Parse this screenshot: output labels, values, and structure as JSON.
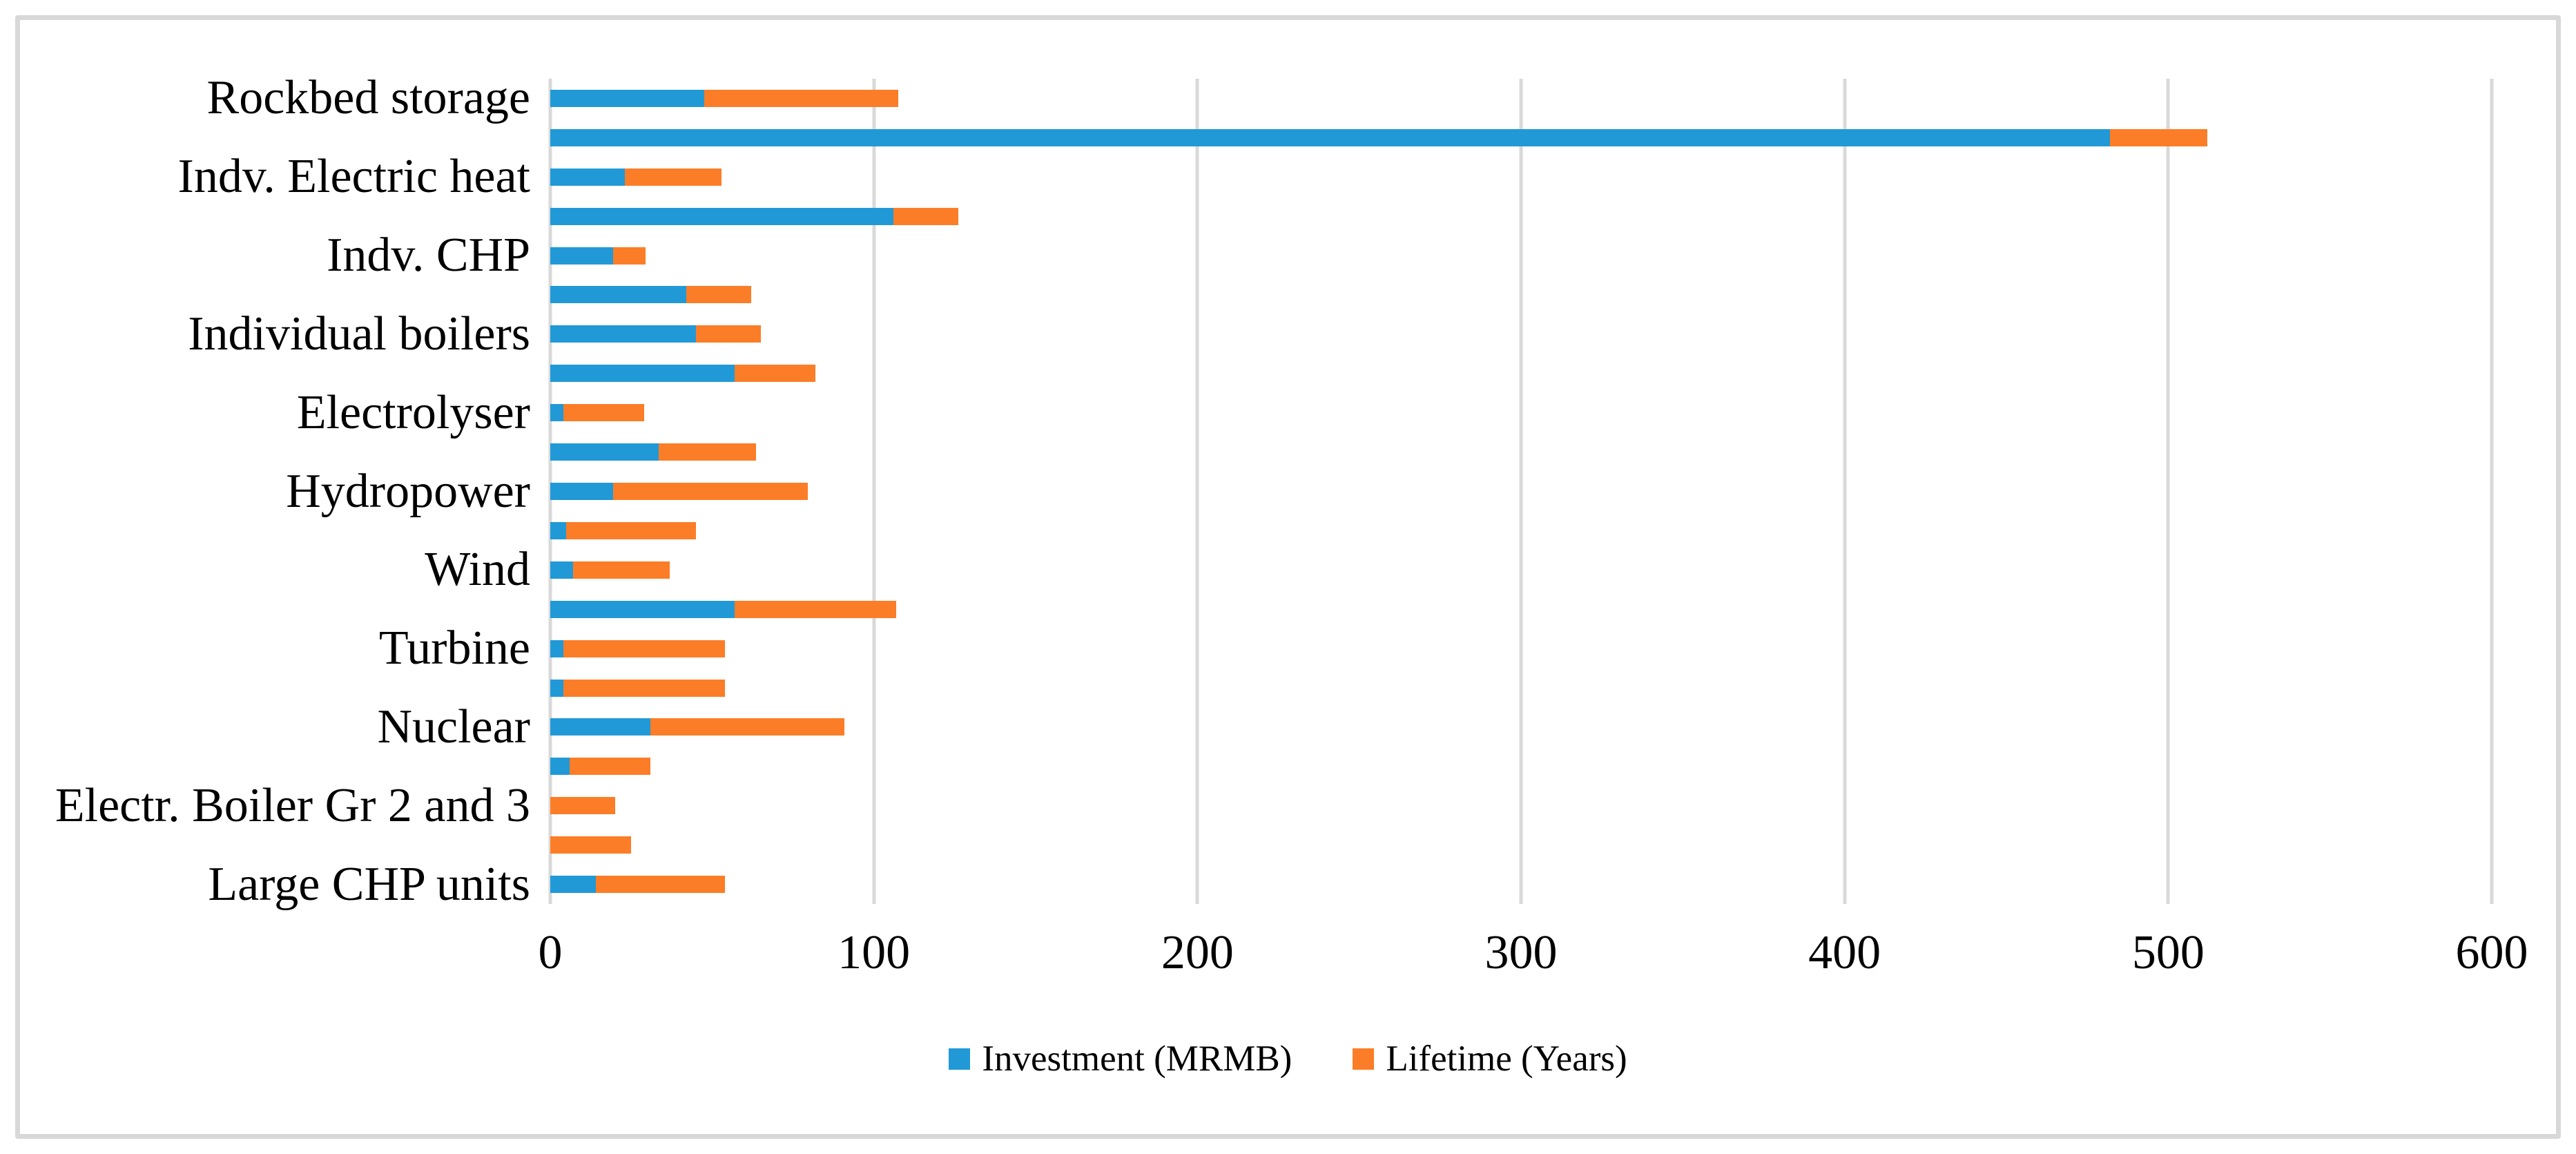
{
  "figure": {
    "background": "#FFFFFF",
    "border_color": "#D8D8D8"
  },
  "chart_data": {
    "type": "bar",
    "orientation": "horizontal",
    "stacked": true,
    "title": "",
    "xlabel": "",
    "ylabel": "",
    "xlim": [
      0,
      600
    ],
    "x_ticks": [
      "0",
      "100",
      "200",
      "300",
      "400",
      "500",
      "600"
    ],
    "gridlines": true,
    "gridline_color": "#D9D9D9",
    "legend_position": "bottom",
    "axis_label_interval": 2,
    "categories": [
      "Rockbed storage",
      "",
      "Indv. Electric heat",
      "",
      "Indv. CHP",
      "",
      "Individual boilers",
      "",
      "Electrolyser",
      "",
      "Hydropower",
      "",
      "Wind",
      "",
      "Turbine",
      "",
      "Nuclear",
      "",
      "Electr. Boiler Gr 2 and 3",
      "",
      "Large CHP units"
    ],
    "series": [
      {
        "name": "Investment (MRMB)",
        "color": "#2199D6",
        "values": [
          47.5,
          482,
          23,
          106,
          19.5,
          42,
          45,
          57,
          4,
          33.5,
          19.5,
          5,
          7,
          57,
          4,
          4,
          31,
          6,
          0,
          0,
          14
        ]
      },
      {
        "name": "Lifetime (Years)",
        "color": "#FC7D27",
        "values": [
          60,
          30,
          30,
          20,
          10,
          20,
          20,
          25,
          25,
          30,
          60,
          40,
          30,
          50,
          50,
          50,
          60,
          25,
          20,
          25,
          40
        ]
      }
    ]
  }
}
